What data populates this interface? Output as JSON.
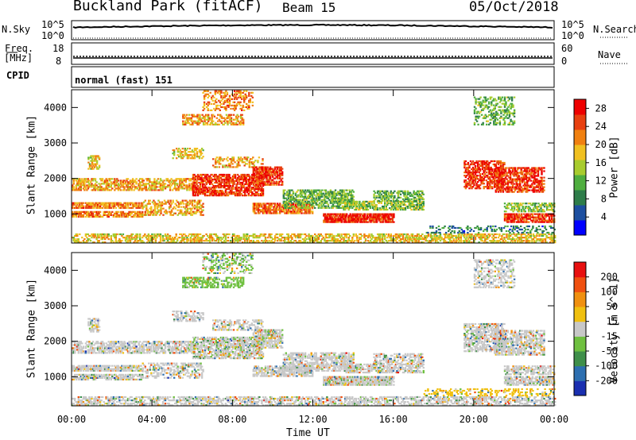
{
  "header": {
    "station": "Buckland Park (fitACF)",
    "beam": "Beam 15",
    "date": "05/Oct/2018"
  },
  "top_panels": {
    "nsky": {
      "label": "N.Sky",
      "ytick_top": "10^5",
      "ytick_bottom": "10^0",
      "right_label": "N.Search",
      "right_tick_top": "10^5",
      "right_tick_bottom": "10^0"
    },
    "freq": {
      "label_line1": "Freq.",
      "label_line2": "[MHz]",
      "ytick_top": "18",
      "ytick_bottom": "8",
      "right_label": "Nave",
      "right_tick_top": "60",
      "right_tick_bottom": "0"
    },
    "cpid": {
      "label": "CPID",
      "mode": "normal (fast) 151"
    }
  },
  "x_axis": {
    "label": "Time UT",
    "ticks": [
      "00:00",
      "04:00",
      "08:00",
      "12:00",
      "16:00",
      "20:00",
      "00:00"
    ]
  },
  "colors": {
    "power_scale": [
      "#0000ff",
      "#1d4fa0",
      "#2e7d4a",
      "#4fae3f",
      "#a8cc2e",
      "#f0c020",
      "#f08010",
      "#e84010",
      "#ee0000"
    ],
    "velocity_scale": [
      "#1a2fb0",
      "#2d6fb0",
      "#3f8f4a",
      "#6fc040",
      "#c8c8c8",
      "#f0c010",
      "#f09010",
      "#f05010",
      "#e81010"
    ]
  },
  "chart_data": [
    {
      "type": "heatmap",
      "panel": "power",
      "ylabel": "Slant Range [km]",
      "yticks": [
        1000,
        2000,
        3000,
        4000
      ],
      "ylim": [
        180,
        4500
      ],
      "xlabel": "Time UT",
      "xlim": [
        0,
        24
      ],
      "colorbar_label": "Power [dB]",
      "colorbar_ticks": [
        4,
        8,
        12,
        16,
        20,
        24,
        28
      ],
      "clim": [
        0,
        30
      ],
      "grid": false,
      "regions": [
        {
          "t": [
            0.0,
            24.0
          ],
          "r": [
            180,
            450
          ],
          "level": 18,
          "density": 0.55
        },
        {
          "t": [
            0.0,
            3.5
          ],
          "r": [
            1150,
            1300
          ],
          "level": 22,
          "density": 0.8
        },
        {
          "t": [
            0.0,
            3.5
          ],
          "r": [
            900,
            1050
          ],
          "level": 22,
          "density": 0.75
        },
        {
          "t": [
            0.0,
            6.0
          ],
          "r": [
            1650,
            2000
          ],
          "level": 20,
          "density": 0.6
        },
        {
          "t": [
            0.8,
            1.4
          ],
          "r": [
            2250,
            2650
          ],
          "level": 18,
          "density": 0.5
        },
        {
          "t": [
            3.5,
            6.5
          ],
          "r": [
            950,
            1400
          ],
          "level": 20,
          "density": 0.45
        },
        {
          "t": [
            5.0,
            6.5
          ],
          "r": [
            2550,
            2850
          ],
          "level": 18,
          "density": 0.45
        },
        {
          "t": [
            5.5,
            8.5
          ],
          "r": [
            3500,
            3800
          ],
          "level": 20,
          "density": 0.55
        },
        {
          "t": [
            6.5,
            9.0
          ],
          "r": [
            3900,
            4450
          ],
          "level": 22,
          "density": 0.35
        },
        {
          "t": [
            6.0,
            9.5
          ],
          "r": [
            1500,
            2100
          ],
          "level": 26,
          "density": 0.7
        },
        {
          "t": [
            7.0,
            9.5
          ],
          "r": [
            2300,
            2600
          ],
          "level": 20,
          "density": 0.4
        },
        {
          "t": [
            9.0,
            10.5
          ],
          "r": [
            1800,
            2300
          ],
          "level": 26,
          "density": 0.7
        },
        {
          "t": [
            9.0,
            12.0
          ],
          "r": [
            1000,
            1300
          ],
          "level": 24,
          "density": 0.7
        },
        {
          "t": [
            10.5,
            14.0
          ],
          "r": [
            1150,
            1650
          ],
          "level": 12,
          "density": 0.6
        },
        {
          "t": [
            12.5,
            16.0
          ],
          "r": [
            750,
            1000
          ],
          "level": 27,
          "density": 0.85
        },
        {
          "t": [
            13.5,
            17.5
          ],
          "r": [
            1100,
            1350
          ],
          "level": 14,
          "density": 0.6
        },
        {
          "t": [
            15.0,
            17.5
          ],
          "r": [
            1350,
            1650
          ],
          "level": 12,
          "density": 0.55
        },
        {
          "t": [
            19.5,
            21.5
          ],
          "r": [
            1700,
            2500
          ],
          "level": 26,
          "density": 0.6
        },
        {
          "t": [
            20.0,
            22.0
          ],
          "r": [
            3500,
            4300
          ],
          "level": 12,
          "density": 0.4
        },
        {
          "t": [
            21.0,
            23.5
          ],
          "r": [
            1600,
            2300
          ],
          "level": 26,
          "density": 0.6
        },
        {
          "t": [
            21.5,
            24.0
          ],
          "r": [
            1050,
            1300
          ],
          "level": 14,
          "density": 0.5
        },
        {
          "t": [
            21.5,
            24.0
          ],
          "r": [
            750,
            1000
          ],
          "level": 26,
          "density": 0.7
        },
        {
          "t": [
            17.5,
            24.0
          ],
          "r": [
            450,
            650
          ],
          "level": 8,
          "density": 0.3
        }
      ]
    },
    {
      "type": "heatmap",
      "panel": "velocity",
      "ylabel": "Slant Range [km]",
      "yticks": [
        1000,
        2000,
        3000,
        4000
      ],
      "ylim": [
        180,
        4500
      ],
      "xlabel": "Time UT",
      "xlim": [
        0,
        24
      ],
      "colorbar_label": "Velocity [m s^-1]",
      "colorbar_ticks": [
        200,
        100,
        50,
        15,
        -15,
        -50,
        -100,
        -200
      ],
      "clim": [
        -250,
        250
      ],
      "grid": false,
      "regions": [
        {
          "t": [
            0.0,
            24.0
          ],
          "r": [
            180,
            450
          ],
          "level": 0,
          "density": 0.55
        },
        {
          "t": [
            0.0,
            3.5
          ],
          "r": [
            1150,
            1300
          ],
          "level": 0,
          "density": 0.8
        },
        {
          "t": [
            0.0,
            3.5
          ],
          "r": [
            900,
            1050
          ],
          "level": 0,
          "density": 0.75
        },
        {
          "t": [
            0.0,
            6.0
          ],
          "r": [
            1650,
            2000
          ],
          "level": 0,
          "density": 0.6
        },
        {
          "t": [
            0.8,
            1.4
          ],
          "r": [
            2250,
            2650
          ],
          "level": 0,
          "density": 0.5
        },
        {
          "t": [
            3.5,
            6.5
          ],
          "r": [
            950,
            1400
          ],
          "level": 0,
          "density": 0.45
        },
        {
          "t": [
            5.0,
            6.5
          ],
          "r": [
            2550,
            2850
          ],
          "level": 0,
          "density": 0.45
        },
        {
          "t": [
            5.5,
            8.5
          ],
          "r": [
            3500,
            3800
          ],
          "level": -40,
          "density": 0.55
        },
        {
          "t": [
            6.5,
            9.0
          ],
          "r": [
            3900,
            4450
          ],
          "level": -30,
          "density": 0.35
        },
        {
          "t": [
            6.0,
            9.5
          ],
          "r": [
            1500,
            2100
          ],
          "level": -20,
          "density": 0.7
        },
        {
          "t": [
            7.0,
            9.5
          ],
          "r": [
            2300,
            2600
          ],
          "level": 0,
          "density": 0.4
        },
        {
          "t": [
            9.0,
            10.5
          ],
          "r": [
            1800,
            2300
          ],
          "level": -20,
          "density": 0.7
        },
        {
          "t": [
            9.0,
            12.0
          ],
          "r": [
            1000,
            1300
          ],
          "level": 0,
          "density": 0.7
        },
        {
          "t": [
            10.5,
            14.0
          ],
          "r": [
            1150,
            1650
          ],
          "level": 0,
          "density": 0.6
        },
        {
          "t": [
            12.5,
            16.0
          ],
          "r": [
            750,
            1000
          ],
          "level": -20,
          "density": 0.85
        },
        {
          "t": [
            13.5,
            17.5
          ],
          "r": [
            1100,
            1350
          ],
          "level": 0,
          "density": 0.6
        },
        {
          "t": [
            15.0,
            17.5
          ],
          "r": [
            1350,
            1650
          ],
          "level": 0,
          "density": 0.55
        },
        {
          "t": [
            19.5,
            21.5
          ],
          "r": [
            1700,
            2500
          ],
          "level": 0,
          "density": 0.6
        },
        {
          "t": [
            20.0,
            22.0
          ],
          "r": [
            3500,
            4300
          ],
          "level": 0,
          "density": 0.4
        },
        {
          "t": [
            21.0,
            23.5
          ],
          "r": [
            1600,
            2300
          ],
          "level": 0,
          "density": 0.6
        },
        {
          "t": [
            21.5,
            24.0
          ],
          "r": [
            1050,
            1300
          ],
          "level": 0,
          "density": 0.5
        },
        {
          "t": [
            21.5,
            24.0
          ],
          "r": [
            750,
            1000
          ],
          "level": 0,
          "density": 0.7
        },
        {
          "t": [
            17.5,
            24.0
          ],
          "r": [
            450,
            650
          ],
          "level": 60,
          "density": 0.3
        }
      ]
    }
  ]
}
